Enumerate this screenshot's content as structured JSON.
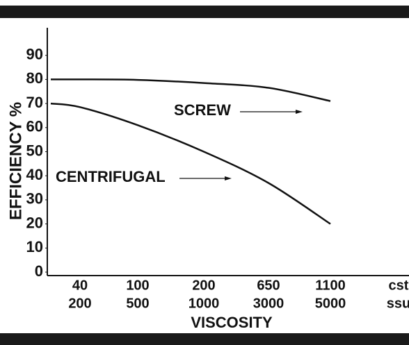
{
  "chart_data": {
    "type": "line",
    "ylabel": "EFFICIENCY %",
    "xlabel": "VISCOSITY",
    "categories": [
      null,
      "40",
      "100",
      "200",
      "650",
      "1100"
    ],
    "categories_ssu": [
      null,
      "200",
      "500",
      "1000",
      "3000",
      "5000"
    ],
    "units": [
      "cst",
      "ssu"
    ],
    "series": [
      {
        "name": "SCREW",
        "color": "#111111",
        "values": [
          80,
          80,
          79.8,
          78.5,
          76.5,
          71
        ]
      },
      {
        "name": "CENTRIFUGAL",
        "color": "#111111",
        "values": [
          70,
          68.5,
          61,
          50,
          37,
          20
        ]
      }
    ],
    "ylim": [
      0,
      100
    ],
    "yticks": [
      0,
      10,
      20,
      30,
      40,
      50,
      60,
      70,
      80,
      90
    ]
  }
}
